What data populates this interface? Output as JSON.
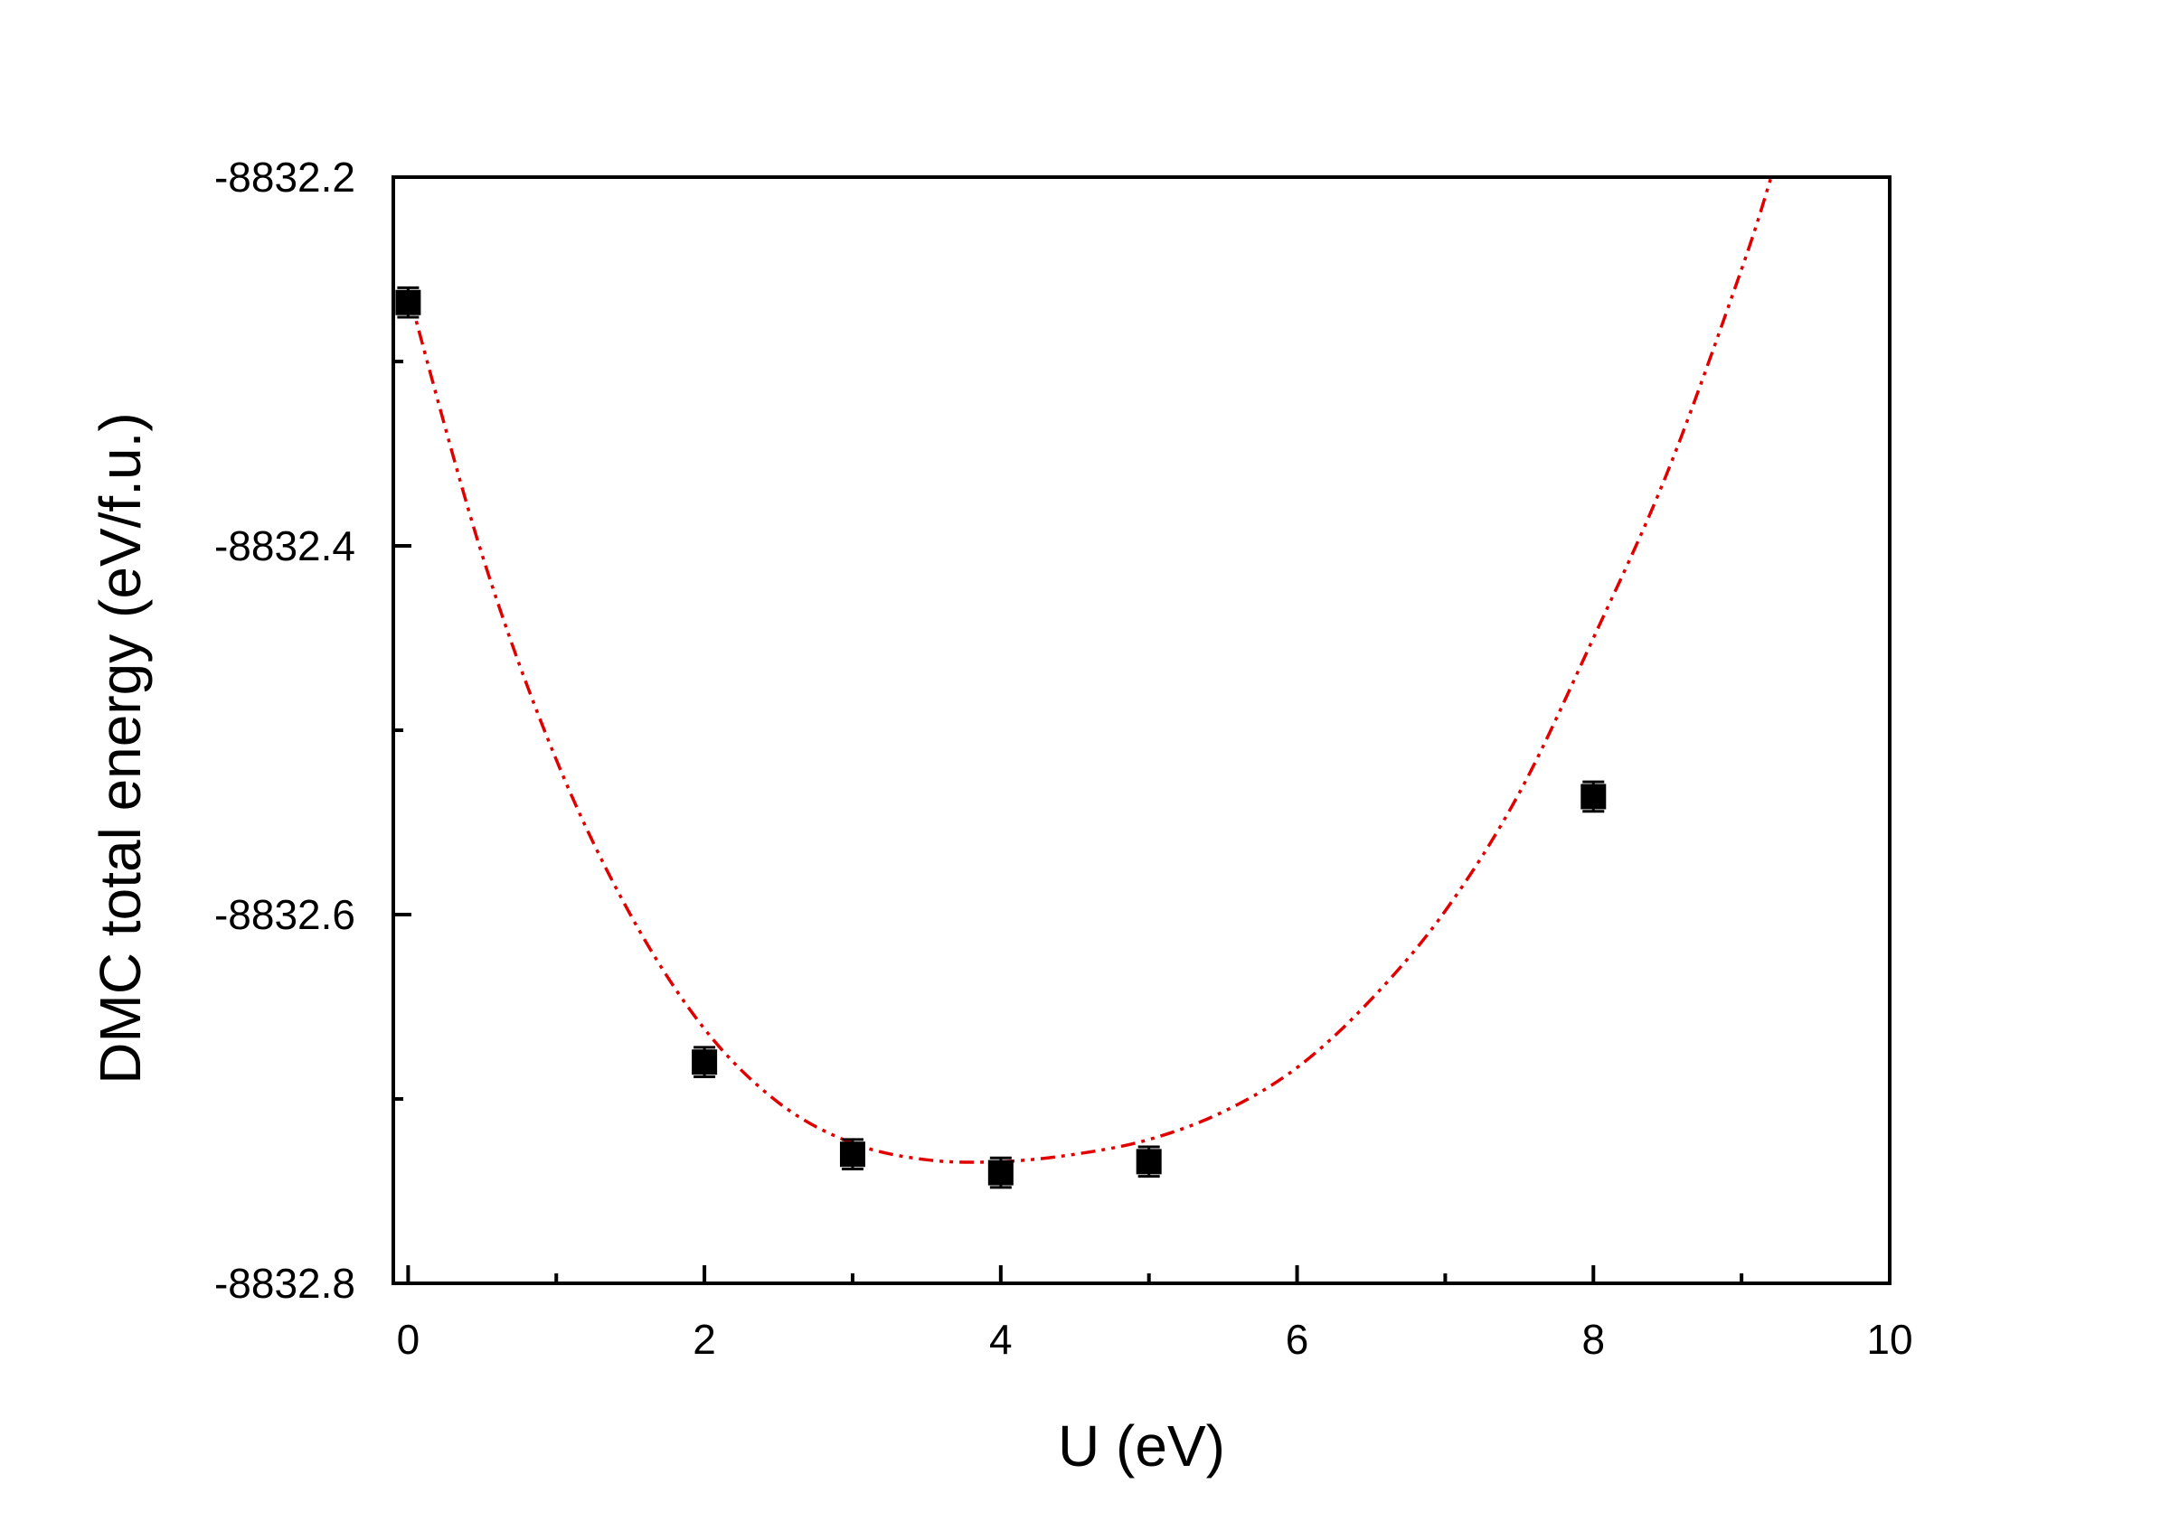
{
  "chart_data": {
    "type": "scatter",
    "title": "",
    "xlabel": "U (eV)",
    "ylabel": "DMC total energy (eV/f.u.)",
    "xlim": [
      -0.1,
      10
    ],
    "ylim": [
      -8832.8,
      -8832.2
    ],
    "x_ticks": [
      0,
      2,
      4,
      6,
      8,
      10
    ],
    "x_tick_labels": [
      "0",
      "2",
      "4",
      "6",
      "8",
      "10"
    ],
    "x_minor_ticks": [
      1,
      3,
      5,
      7,
      9
    ],
    "y_ticks": [
      -8832.2,
      -8832.4,
      -8832.6,
      -8832.8
    ],
    "y_tick_labels": [
      "-8832.2",
      "-8832.4",
      "-8832.6",
      "-8832.8"
    ],
    "y_minor_ticks": [
      -8832.3,
      -8832.5,
      -8832.7
    ],
    "grid": false,
    "legend": "none",
    "series": [
      {
        "kind": "points",
        "marker": "square",
        "color": "#000000",
        "x": [
          0,
          2,
          3,
          4,
          5,
          8
        ],
        "y": [
          -8832.268,
          -8832.68,
          -8832.73,
          -8832.74,
          -8832.734,
          -8832.536
        ],
        "error": [
          0.008,
          0.008,
          0.008,
          0.008,
          0.008,
          0.008
        ]
      },
      {
        "kind": "fit",
        "style": "dash-dot-dot",
        "color": "#e00000",
        "x": [
          0,
          0.5,
          1,
          1.5,
          2,
          2.5,
          3,
          3.5,
          4,
          4.5,
          5,
          5.5,
          6,
          6.5,
          7,
          7.5,
          8,
          8.5,
          9,
          9.2
        ],
        "y": [
          -8832.262,
          -8832.405,
          -8832.516,
          -8832.6,
          -8832.662,
          -8832.702,
          -8832.724,
          -8832.733,
          -8832.734,
          -8832.73,
          -8832.722,
          -8832.707,
          -8832.683,
          -8832.646,
          -8832.598,
          -8832.534,
          -8832.45,
          -8832.36,
          -8832.25,
          -8832.2
        ]
      }
    ]
  }
}
